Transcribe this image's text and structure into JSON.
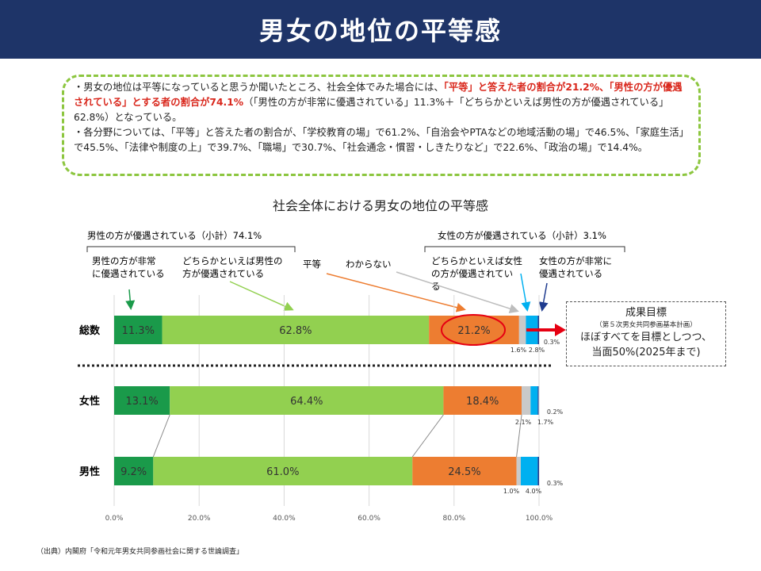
{
  "title": "男女の地位の平等感",
  "summary": {
    "p1_a": "・男女の地位は平等になっていると思うか聞いたところ、社会全体でみた場合には、",
    "p1_b": "「平等」と答えた者の割合が21.2%、",
    "p1_c": "「男性の方が優遇されている」とする者の割合が74.1%",
    "p1_d": "（「男性の方が非常に優遇されている」11.3%＋「どちらかといえば男性の方が優遇されている」62.8%）となっている。",
    "p2": "・各分野については、「平等」と答えた者の割合が、「学校教育の場」で61.2%、「自治会やPTAなどの地域活動の場」で46.5%、「家庭生活」で45.5%、「法律や制度の上」で39.7%、「職場」で30.7%、「社会通念・慣習・しきたりなど」で22.6%、「政治の場」で14.4%。"
  },
  "chart_data": {
    "type": "bar",
    "orientation": "horizontal-stacked",
    "title": "社会全体における男女の地位の平等感",
    "categories": [
      "総数",
      "女性",
      "男性"
    ],
    "series": [
      {
        "name": "男性の方が非常に優遇されている",
        "color": "#1a9a4a",
        "values": [
          11.3,
          13.1,
          9.2
        ],
        "labels": [
          "11.3%",
          "13.1%",
          "9.2%"
        ]
      },
      {
        "name": "どちらかといえば男性の方が優遇されている",
        "color": "#92d050",
        "values": [
          62.8,
          64.4,
          61.0
        ],
        "labels": [
          "62.8%",
          "64.4%",
          "61.0%"
        ]
      },
      {
        "name": "平等",
        "color": "#ed7d31",
        "values": [
          21.2,
          18.4,
          24.5
        ],
        "labels": [
          "21.2%",
          "18.4%",
          "24.5%"
        ]
      },
      {
        "name": "わからない",
        "color": "#c9c9c9",
        "values": [
          1.6,
          2.1,
          1.0
        ],
        "labels": [
          "1.6%",
          "2.1%",
          "1.0%"
        ]
      },
      {
        "name": "どちらかといえば女性の方が優遇されている",
        "color": "#00b0f0",
        "values": [
          2.8,
          1.7,
          4.0
        ],
        "labels": [
          "2.8%",
          "1.7%",
          "4.0%"
        ]
      },
      {
        "name": "女性の方が非常に優遇されている",
        "color": "#1f3b8f",
        "values": [
          0.3,
          0.2,
          0.3
        ],
        "labels": [
          "0.3%",
          "0.2%",
          "0.3%"
        ]
      }
    ],
    "xlim": [
      0,
      100
    ],
    "xticks": [
      "0.0%",
      "20.0%",
      "40.0%",
      "60.0%",
      "80.0%",
      "100.0%"
    ],
    "legend_labels": {
      "male_subtotal": "男性の方が優遇されている（小計）74.1%",
      "female_subtotal": "女性の方が優遇されている（小計）3.1%",
      "male_strong": [
        "男性の方が非常",
        "に優遇されている"
      ],
      "male_some": [
        "どちらかといえば男性の",
        "方が優遇されている"
      ],
      "equal": "平等",
      "unknown": "わからない",
      "female_some": [
        "どちらかといえば女性",
        "の方が優遇されてい",
        "る"
      ],
      "female_strong": [
        "女性の方が非常に",
        "優遇されている"
      ]
    }
  },
  "goal": {
    "title": "成果目標",
    "source": "（第５次男女共同参画基本計画）",
    "line1": "ほぼすべてを目標としつつ、",
    "line2": "当面50%(2025年まで)"
  },
  "footnote": "（出典）内閣府「令和元年男女共同参画社会に関する世論調査」"
}
